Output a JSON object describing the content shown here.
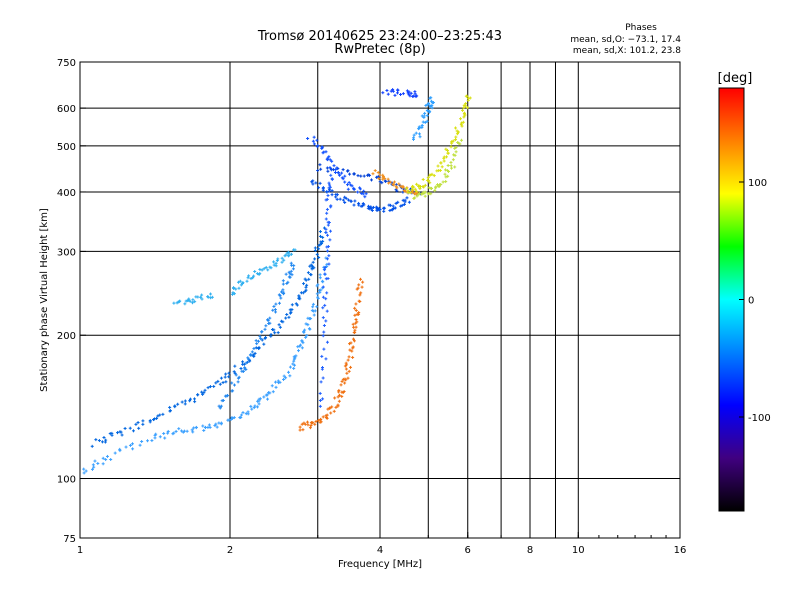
{
  "chart_data": {
    "type": "scatter",
    "title": "Tromsø 20140625 23:24:00–23:25:43",
    "subtitle": "RwPretec (8p)",
    "xlabel": "Frequency [MHz]",
    "ylabel": "Stationary phase Virtual Height [km]",
    "x_scale": "log",
    "y_scale": "log",
    "xlim": [
      1,
      16
    ],
    "ylim": [
      75,
      750
    ],
    "grid": true,
    "x_ticks": [
      1,
      2,
      4,
      6,
      8,
      10,
      16
    ],
    "x_ticks_minor": [
      3,
      5,
      7,
      9
    ],
    "y_ticks": [
      75,
      100,
      200,
      300,
      400,
      500,
      600,
      750
    ],
    "legend": {
      "title": "Phases",
      "lines": [
        "mean, sd,O: −73.1, 17.4",
        "mean, sd,X: 101.2, 23.8"
      ]
    },
    "colorbar": {
      "label": "[deg]",
      "range": [
        -180,
        180
      ],
      "ticks": [
        100,
        0,
        -100
      ],
      "colors": [
        "#ff0000",
        "#ff8000",
        "#ffff00",
        "#00ff00",
        "#00ffff",
        "#0080ff",
        "#0000ff",
        "#400080",
        "#000000"
      ]
    },
    "series": [
      {
        "kind": "trace",
        "color": "#0066e0",
        "points": [
          [
            1.07,
            118
          ],
          [
            1.2,
            125
          ],
          [
            1.4,
            133
          ],
          [
            1.6,
            143
          ],
          [
            1.8,
            153
          ],
          [
            2.0,
            165
          ],
          [
            2.2,
            180
          ],
          [
            2.4,
            198
          ],
          [
            2.6,
            220
          ],
          [
            2.8,
            245
          ],
          [
            2.9,
            270
          ],
          [
            3.0,
            300
          ],
          [
            3.1,
            335
          ]
        ]
      },
      {
        "kind": "trace",
        "color": "#3aa0ff",
        "points": [
          [
            1.02,
            103
          ],
          [
            1.15,
            112
          ],
          [
            1.4,
            122
          ],
          [
            1.6,
            126
          ],
          [
            1.8,
            128
          ],
          [
            2.0,
            132
          ],
          [
            2.2,
            140
          ],
          [
            2.4,
            150
          ],
          [
            2.6,
            165
          ],
          [
            2.75,
            185
          ],
          [
            2.85,
            205
          ],
          [
            2.95,
            230
          ],
          [
            3.05,
            260
          ],
          [
            3.1,
            290
          ]
        ]
      },
      {
        "kind": "trace",
        "color": "#2288f0",
        "points": [
          [
            1.9,
            140
          ],
          [
            2.05,
            160
          ],
          [
            2.2,
            180
          ],
          [
            2.35,
            205
          ],
          [
            2.5,
            235
          ],
          [
            2.6,
            260
          ],
          [
            2.7,
            285
          ]
        ]
      },
      {
        "kind": "trace",
        "color": "#30b0f0",
        "points": [
          [
            2.0,
            245
          ],
          [
            2.15,
            262
          ],
          [
            2.35,
            275
          ],
          [
            2.55,
            290
          ],
          [
            2.7,
            300
          ]
        ]
      },
      {
        "kind": "trace",
        "color": "#30b0f0",
        "points": [
          [
            1.55,
            233
          ],
          [
            1.7,
            238
          ],
          [
            1.85,
            243
          ]
        ]
      },
      {
        "kind": "trace",
        "color": "#2060ff",
        "points": [
          [
            3.05,
            140
          ],
          [
            3.1,
            200
          ],
          [
            3.12,
            260
          ],
          [
            3.14,
            320
          ],
          [
            3.15,
            380
          ],
          [
            3.18,
            450
          ]
        ]
      },
      {
        "kind": "trace",
        "color": "#f07010",
        "points": [
          [
            2.75,
            128
          ],
          [
            2.95,
            131
          ],
          [
            3.15,
            137
          ],
          [
            3.3,
            147
          ],
          [
            3.4,
            160
          ],
          [
            3.48,
            180
          ],
          [
            3.55,
            205
          ],
          [
            3.6,
            230
          ],
          [
            3.65,
            265
          ]
        ]
      },
      {
        "kind": "trace",
        "color": "#0050e8",
        "points": [
          [
            2.9,
            420
          ],
          [
            3.2,
            400
          ],
          [
            3.5,
            380
          ],
          [
            3.8,
            370
          ],
          [
            4.0,
            368
          ],
          [
            4.3,
            372
          ],
          [
            4.6,
            385
          ]
        ]
      },
      {
        "kind": "trace",
        "color": "#0040d8",
        "points": [
          [
            3.0,
            450
          ],
          [
            3.5,
            440
          ],
          [
            4.0,
            425
          ],
          [
            4.4,
            405
          ],
          [
            4.8,
            395
          ]
        ]
      },
      {
        "kind": "trace",
        "color": "#1050ff",
        "points": [
          [
            2.9,
            520
          ],
          [
            3.1,
            480
          ],
          [
            3.3,
            440
          ],
          [
            3.5,
            410
          ],
          [
            3.8,
            395
          ]
        ]
      },
      {
        "kind": "trace",
        "color": "#f09020",
        "points": [
          [
            3.9,
            440
          ],
          [
            4.2,
            420
          ],
          [
            4.5,
            405
          ],
          [
            4.8,
            395
          ]
        ]
      },
      {
        "kind": "trace",
        "color": "#d8e010",
        "points": [
          [
            4.5,
            400
          ],
          [
            4.8,
            410
          ],
          [
            5.1,
            430
          ],
          [
            5.4,
            470
          ],
          [
            5.7,
            530
          ],
          [
            5.9,
            590
          ],
          [
            6.0,
            640
          ]
        ]
      },
      {
        "kind": "trace",
        "color": "#c0e040",
        "points": [
          [
            4.7,
            390
          ],
          [
            5.0,
            400
          ],
          [
            5.3,
            420
          ],
          [
            5.6,
            460
          ],
          [
            5.8,
            520
          ]
        ]
      },
      {
        "kind": "trace",
        "color": "#1040ff",
        "points": [
          [
            4.1,
            650
          ],
          [
            4.5,
            645
          ],
          [
            4.8,
            640
          ]
        ]
      },
      {
        "kind": "trace",
        "color": "#30a0ff",
        "points": [
          [
            4.7,
            520
          ],
          [
            4.9,
            560
          ],
          [
            5.0,
            600
          ],
          [
            5.1,
            630
          ]
        ]
      }
    ]
  }
}
